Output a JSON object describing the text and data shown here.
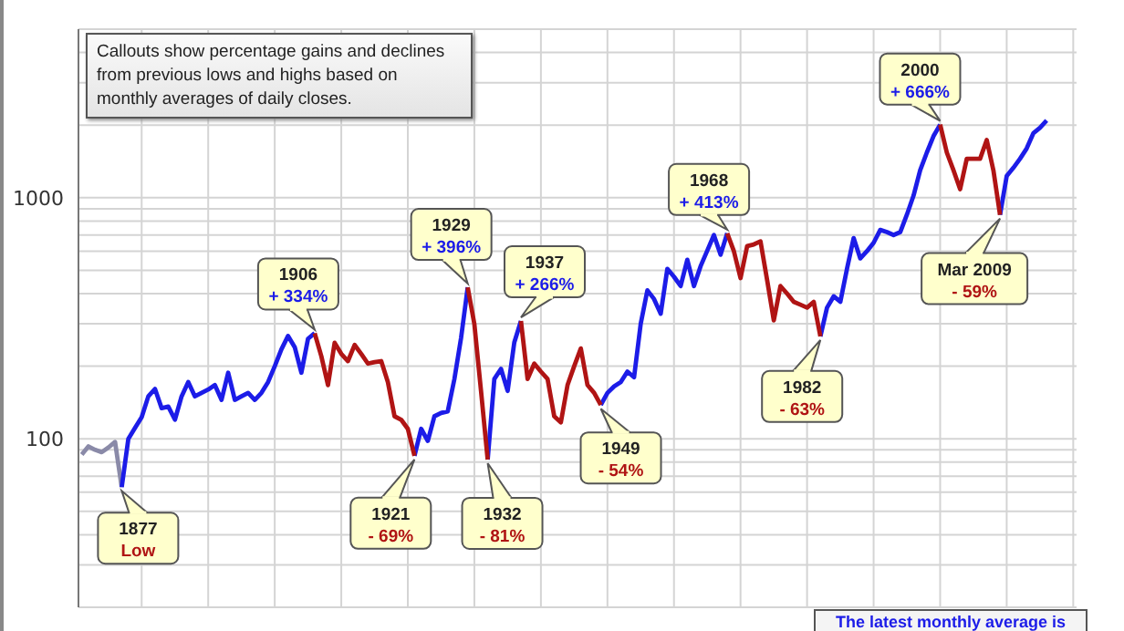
{
  "chart_data": {
    "type": "line",
    "categories": [
      null,
      null,
      null,
      null,
      null,
      null,
      null,
      null,
      null,
      null,
      null,
      null,
      null,
      null,
      null,
      null,
      null,
      null,
      null,
      null,
      null,
      null,
      null,
      null,
      null,
      null,
      null,
      null,
      null,
      null,
      null,
      null,
      null,
      null,
      null,
      null,
      null,
      null,
      null,
      null,
      null,
      null,
      null,
      null,
      null,
      null,
      null,
      null,
      null,
      null,
      null,
      null,
      null,
      null,
      null,
      null,
      null,
      null,
      null,
      null,
      null,
      null,
      null,
      null,
      null,
      null,
      null,
      null,
      null,
      null,
      null,
      null,
      null,
      null,
      null,
      null,
      null,
      null,
      null,
      null,
      null,
      null,
      null,
      null,
      null,
      null,
      null,
      null,
      null,
      null,
      null,
      null,
      null,
      null,
      null,
      null,
      null,
      null,
      null,
      null,
      null,
      null,
      null,
      null,
      null,
      null,
      null,
      null,
      null,
      null,
      null,
      null,
      null,
      null,
      null,
      null,
      null,
      null,
      null,
      null,
      null,
      null,
      null,
      null,
      null,
      null,
      null,
      null,
      null,
      null,
      null,
      null,
      null,
      null,
      null,
      null,
      null,
      null,
      null,
      null,
      null,
      null,
      null,
      null,
      null,
      null,
      null,
      null,
      null,
      null
    ],
    "ylim": [
      20,
      5000
    ],
    "yticks": [
      {
        "value": 20,
        "label": null
      },
      {
        "value": 30,
        "label": null
      },
      {
        "value": 40,
        "label": null
      },
      {
        "value": 50,
        "label": null
      },
      {
        "value": 60,
        "label": null
      },
      {
        "value": 70,
        "label": null
      },
      {
        "value": 80,
        "label": null
      },
      {
        "value": 90,
        "label": null
      },
      100,
      {
        "value": 200,
        "label": null
      },
      {
        "value": 300,
        "label": null
      },
      {
        "value": 400,
        "label": null
      },
      {
        "value": 500,
        "label": null
      },
      {
        "value": 600,
        "label": null
      },
      {
        "value": 700,
        "label": null
      },
      {
        "value": 800,
        "label": null
      },
      {
        "value": 900,
        "label": null
      },
      1000,
      {
        "value": 2000,
        "label": null
      },
      {
        "value": 3000,
        "label": null
      },
      {
        "value": 4000,
        "label": null
      },
      {
        "value": 5000,
        "label": null
      }
    ],
    "log": "y",
    "grid": true,
    "tick_labels": "y",
    "line_style": "solid",
    "marker": "none",
    "series": [
      {
        "color": "#8a8aa8",
        "values": [
          86,
          93,
          90,
          88,
          92,
          97,
          63,
          null,
          null,
          null,
          null,
          null,
          null,
          null,
          null,
          null,
          null,
          null,
          null,
          null,
          null,
          null,
          null,
          null,
          null,
          null,
          null,
          null,
          null,
          null,
          null,
          null,
          null,
          null,
          null,
          null,
          null,
          null,
          null,
          null,
          null,
          null,
          null,
          null,
          null,
          null,
          null,
          null,
          null,
          null,
          null,
          null,
          null,
          null,
          null,
          null,
          null,
          null,
          null,
          null,
          null,
          null,
          null,
          null,
          null,
          null,
          null,
          null,
          null,
          null,
          null,
          null,
          null,
          null,
          null,
          null,
          null,
          null,
          null,
          null,
          null,
          null,
          null,
          null,
          null,
          null,
          null,
          null,
          null,
          null,
          null,
          null,
          null,
          null,
          null,
          null,
          null,
          null,
          null,
          null,
          null,
          null,
          null,
          null,
          null,
          null,
          null,
          null,
          null,
          null,
          null,
          null,
          null,
          null,
          null,
          null,
          null,
          null,
          null,
          null,
          null,
          null,
          null,
          null,
          null,
          null,
          null,
          null,
          null,
          null,
          null,
          null,
          null,
          null,
          null,
          null,
          null,
          null,
          null,
          null,
          null,
          null,
          null,
          null,
          null,
          null,
          null,
          null,
          null,
          null
        ]
      },
      {
        "color": "#1c1ce8",
        "values": [
          null,
          null,
          null,
          null,
          null,
          null,
          63,
          100,
          111,
          123,
          150,
          161,
          134,
          136,
          120,
          150,
          172,
          150,
          155,
          160,
          167,
          145,
          188,
          145,
          150,
          155,
          145,
          155,
          172,
          200,
          235,
          267,
          240,
          188,
          260,
          274,
          null,
          null,
          null,
          null,
          null,
          null,
          null,
          null,
          null,
          null,
          null,
          null,
          null,
          null,
          85,
          110,
          98,
          124,
          128,
          130,
          177,
          262,
          425,
          null,
          null,
          82,
          177,
          195,
          158,
          251,
          308,
          null,
          null,
          null,
          null,
          null,
          null,
          null,
          null,
          null,
          null,
          null,
          138,
          155,
          165,
          172,
          190,
          180,
          300,
          413,
          380,
          330,
          507,
          470,
          430,
          553,
          430,
          520,
          603,
          700,
          580,
          712,
          null,
          null,
          null,
          null,
          null,
          null,
          null,
          null,
          null,
          null,
          null,
          null,
          null,
          266,
          350,
          390,
          370,
          507,
          680,
          560,
          600,
          650,
          735,
          720,
          700,
          720,
          850,
          1020,
          1300,
          1540,
          1800,
          2010,
          null,
          null,
          null,
          null,
          null,
          null,
          null,
          null,
          849,
          1230,
          1330,
          1450,
          1600,
          1850,
          1950,
          2090,
          null,
          null,
          null,
          null
        ]
      },
      {
        "color": "#b01414",
        "values": [
          null,
          null,
          null,
          null,
          null,
          null,
          null,
          null,
          null,
          null,
          null,
          null,
          null,
          null,
          null,
          null,
          null,
          null,
          null,
          null,
          null,
          null,
          null,
          null,
          null,
          null,
          null,
          null,
          null,
          null,
          null,
          null,
          null,
          null,
          null,
          274,
          220,
          167,
          250,
          225,
          210,
          245,
          225,
          205,
          208,
          210,
          172,
          124,
          120,
          110,
          85,
          null,
          null,
          null,
          null,
          null,
          null,
          null,
          425,
          299,
          158,
          82,
          null,
          null,
          null,
          null,
          308,
          177,
          205,
          190,
          177,
          124,
          117,
          167,
          200,
          237,
          167,
          155,
          138,
          null,
          null,
          null,
          null,
          null,
          null,
          null,
          null,
          null,
          null,
          null,
          null,
          null,
          null,
          null,
          null,
          null,
          null,
          712,
          600,
          464,
          630,
          640,
          659,
          455,
          310,
          430,
          400,
          370,
          360,
          350,
          370,
          266,
          null,
          null,
          null,
          null,
          null,
          null,
          null,
          null,
          null,
          null,
          null,
          null,
          null,
          null,
          null,
          null,
          null,
          2010,
          1540,
          1300,
          1085,
          1450,
          1450,
          1450,
          1735,
          1300,
          849,
          null,
          null,
          null,
          null,
          null,
          null,
          null,
          null,
          null,
          null,
          null
        ]
      }
    ],
    "annotations": [
      "Callouts show percentage gains and declines from previous lows and highs based on monthly averages of daily closes.",
      "1877\nLow",
      "1906\n+ 334%",
      "1921\n- 69%",
      "1929\n+ 396%",
      "1932\n- 81%",
      "1937\n+ 266%",
      "1949\n- 54%",
      "1968\n+ 413%",
      "1982\n- 63%",
      "2000\n+ 666%",
      "Mar 2009\n- 59%",
      "The latest monthly average is"
    ]
  }
}
